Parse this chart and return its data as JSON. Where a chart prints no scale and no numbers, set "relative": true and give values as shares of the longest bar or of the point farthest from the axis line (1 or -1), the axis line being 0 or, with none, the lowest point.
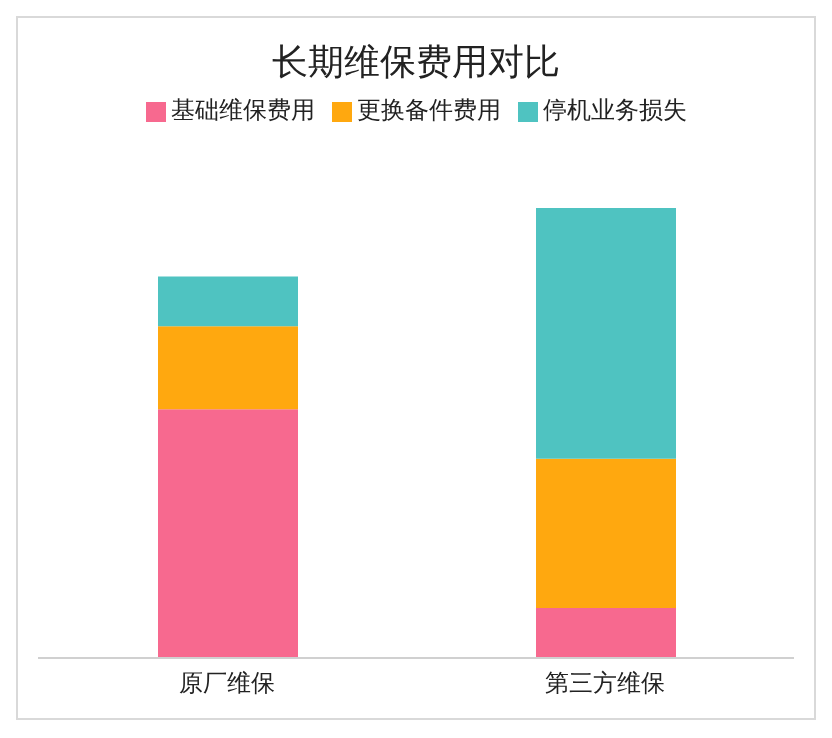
{
  "chart_data": {
    "type": "bar",
    "title": "长期维保费用对比",
    "categories": [
      "原厂维保",
      "第三方维保"
    ],
    "stacked": true,
    "relative": true,
    "legend": "top",
    "grid": false,
    "series": [
      {
        "name": "基础维保费用",
        "color": "#f7698f",
        "values": [
          0.553,
          0.111
        ]
      },
      {
        "name": "更换备件费用",
        "color": "#ffa80f",
        "values": [
          0.184,
          0.332
        ]
      },
      {
        "name": "停机业务损失",
        "color": "#4fc3c1",
        "values": [
          0.111,
          0.557
        ]
      }
    ]
  }
}
